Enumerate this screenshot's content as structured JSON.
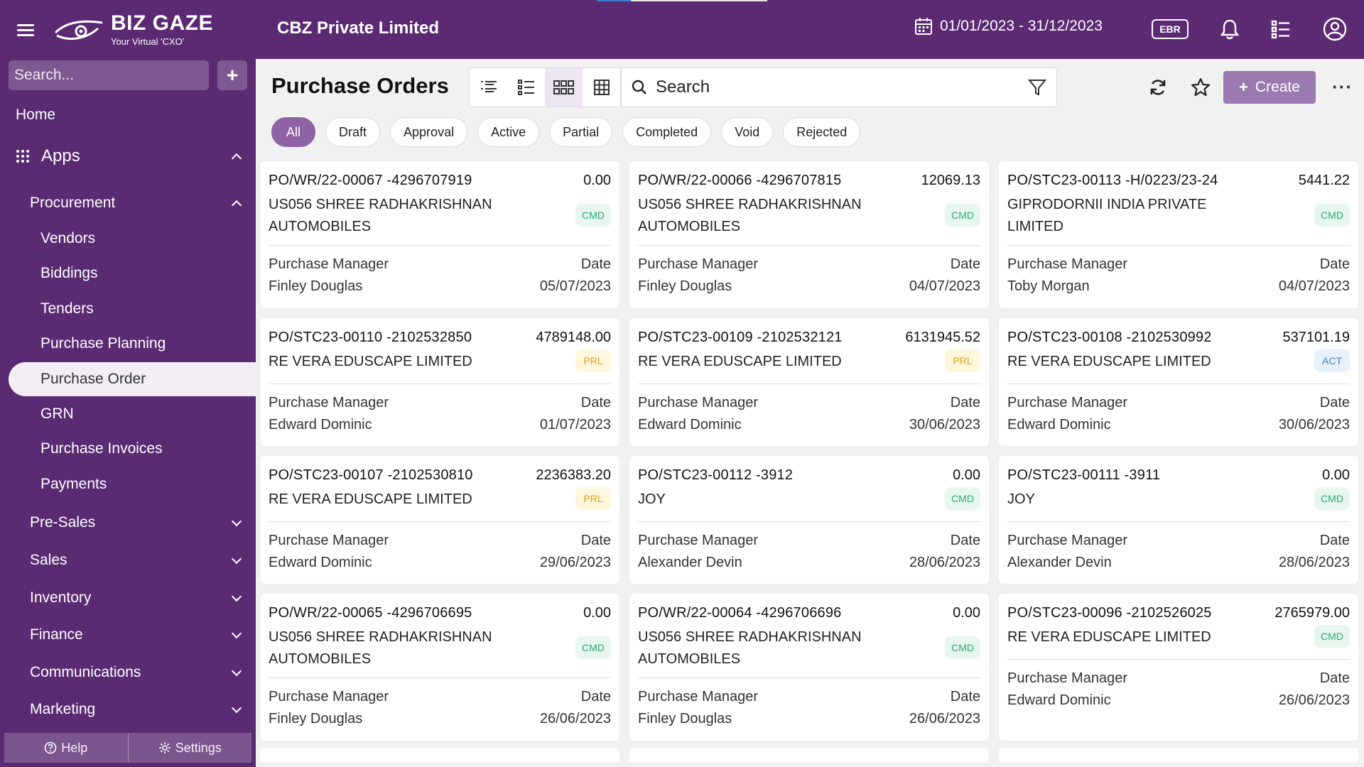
{
  "app": {
    "brand": "BIZ GAZE",
    "tagline": "Your Virtual 'CXO'",
    "company": "CBZ Private Limited",
    "date_range": "01/01/2023 - 31/12/2023",
    "org_badge": "EBR"
  },
  "sidebar": {
    "search_placeholder": "Search...",
    "home": "Home",
    "apps": "Apps",
    "procurement": "Procurement",
    "procurement_items": [
      "Vendors",
      "Biddings",
      "Tenders",
      "Purchase Planning",
      "Purchase Order",
      "GRN",
      "Purchase Invoices",
      "Payments"
    ],
    "active_item": "Purchase Order",
    "sections": [
      "Pre-Sales",
      "Sales",
      "Inventory",
      "Finance",
      "Communications",
      "Marketing"
    ],
    "help": "Help",
    "settings": "Settings"
  },
  "main": {
    "title": "Purchase Orders",
    "search_placeholder": "Search",
    "create_label": "Create",
    "filters": [
      "All",
      "Draft",
      "Approval",
      "Active",
      "Partial",
      "Completed",
      "Void",
      "Rejected"
    ],
    "active_filter": "All",
    "card_labels": {
      "manager": "Purchase Manager",
      "date": "Date"
    },
    "cards": [
      {
        "id": "PO/WR/22-00067 -4296707919",
        "amount": "0.00",
        "vendor": "US056 SHREE RADHAKRISHNAN AUTOMOBILES",
        "status": "CMD",
        "manager": "Finley Douglas",
        "date": "05/07/2023"
      },
      {
        "id": "PO/WR/22-00066 -4296707815",
        "amount": "12069.13",
        "vendor": "US056 SHREE RADHAKRISHNAN AUTOMOBILES",
        "status": "CMD",
        "manager": "Finley Douglas",
        "date": "04/07/2023"
      },
      {
        "id": "PO/STC23-00113 -H/0223/23-24",
        "amount": "5441.22",
        "vendor": "GIPRODORNII INDIA PRIVATE LIMITED",
        "status": "CMD",
        "manager": "Toby Morgan",
        "date": "04/07/2023"
      },
      {
        "id": "PO/STC23-00110 -2102532850",
        "amount": "4789148.00",
        "vendor": "RE VERA EDUSCAPE LIMITED",
        "status": "PRL",
        "manager": "Edward Dominic",
        "date": "01/07/2023"
      },
      {
        "id": "PO/STC23-00109 -2102532121",
        "amount": "6131945.52",
        "vendor": "RE VERA EDUSCAPE LIMITED",
        "status": "PRL",
        "manager": "Edward Dominic",
        "date": "30/06/2023"
      },
      {
        "id": "PO/STC23-00108 -2102530992",
        "amount": "537101.19",
        "vendor": "RE VERA EDUSCAPE LIMITED",
        "status": "ACT",
        "manager": "Edward Dominic",
        "date": "30/06/2023"
      },
      {
        "id": "PO/STC23-00107 -2102530810",
        "amount": "2236383.20",
        "vendor": "RE VERA EDUSCAPE LIMITED",
        "status": "PRL",
        "manager": "Edward Dominic",
        "date": "29/06/2023"
      },
      {
        "id": "PO/STC23-00112 -3912",
        "amount": "0.00",
        "vendor": "JOY",
        "status": "CMD",
        "manager": "Alexander Devin",
        "date": "28/06/2023"
      },
      {
        "id": "PO/STC23-00111 -3911",
        "amount": "0.00",
        "vendor": "JOY",
        "status": "CMD",
        "manager": "Alexander Devin",
        "date": "28/06/2023"
      },
      {
        "id": "PO/WR/22-00065 -4296706695",
        "amount": "0.00",
        "vendor": "US056 SHREE RADHAKRISHNAN AUTOMOBILES",
        "status": "CMD",
        "manager": "Finley Douglas",
        "date": "26/06/2023"
      },
      {
        "id": "PO/WR/22-00064 -4296706696",
        "amount": "0.00",
        "vendor": "US056 SHREE RADHAKRISHNAN AUTOMOBILES",
        "status": "CMD",
        "manager": "Finley Douglas",
        "date": "26/06/2023"
      },
      {
        "id": "PO/STC23-00096 -2102526025",
        "amount": "2765979.00",
        "vendor": "RE VERA EDUSCAPE LIMITED",
        "status": "CMD",
        "manager": "Edward Dominic",
        "date": "26/06/2023"
      }
    ]
  },
  "colors": {
    "header": "#5b2a73",
    "accent": "#8e63a6",
    "cmd": "#2aa86e",
    "prl": "#d9a21a",
    "act": "#3e7fc1"
  }
}
